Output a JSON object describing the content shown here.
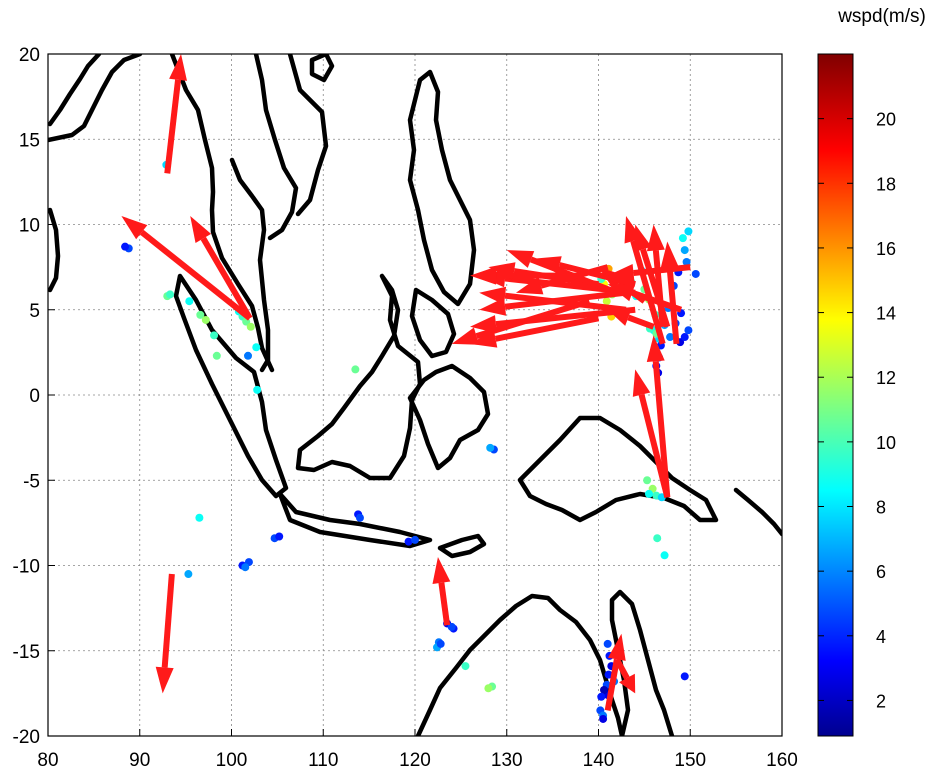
{
  "chart_data": {
    "type": "scatter",
    "title": "",
    "xlabel": "",
    "ylabel": "",
    "xlim": [
      80,
      160
    ],
    "ylim": [
      -20,
      20
    ],
    "xticks": [
      80,
      90,
      100,
      110,
      120,
      130,
      140,
      150,
      160
    ],
    "yticks": [
      20,
      15,
      10,
      5,
      0,
      -5,
      -10,
      -15,
      -20
    ],
    "grid": true,
    "colorbar": {
      "title": "wspd(m/s)",
      "range": [
        0.9,
        22
      ],
      "ticks": [
        2,
        4,
        6,
        8,
        10,
        12,
        14,
        16,
        18,
        20
      ],
      "colormap": "jet"
    },
    "arrow_color": "#ff1a1a",
    "arrows": [
      [
        93,
        13,
        94.5,
        20
      ],
      [
        102,
        4.5,
        88,
        10.5
      ],
      [
        102,
        4.5,
        95.5,
        10.5
      ],
      [
        93.5,
        -10.5,
        92.5,
        -17.5
      ],
      [
        123.5,
        -13.5,
        122.5,
        -9.5
      ],
      [
        141,
        -18.5,
        142.5,
        -14
      ],
      [
        142,
        -15.5,
        144,
        -17.5
      ],
      [
        147.5,
        -6,
        144,
        1.5
      ],
      [
        147.5,
        -6,
        146,
        3.5
      ],
      [
        147,
        3,
        143,
        10.5
      ],
      [
        147.5,
        4,
        144,
        10
      ],
      [
        148.5,
        3,
        147.5,
        9
      ],
      [
        147,
        4,
        146,
        10
      ],
      [
        145,
        5.5,
        140,
        7.5
      ],
      [
        144,
        5,
        126,
        4
      ],
      [
        144,
        6,
        127,
        7
      ],
      [
        140,
        6.5,
        128,
        7.5
      ],
      [
        142,
        6,
        130,
        8.5
      ],
      [
        141,
        7.5,
        131,
        6
      ],
      [
        143,
        5,
        127,
        6
      ],
      [
        139,
        5.5,
        124,
        3
      ],
      [
        140,
        4.5,
        126,
        3
      ],
      [
        143,
        6,
        127,
        5
      ],
      [
        138,
        7,
        126,
        7
      ],
      [
        144,
        6.5,
        133,
        8
      ],
      [
        146,
        4,
        141,
        5
      ],
      [
        149,
        5,
        141,
        6.5
      ],
      [
        150,
        7.5,
        141,
        7
      ]
    ],
    "points": [
      [
        92.9,
        13.5,
        8
      ],
      [
        88.8,
        8.6,
        5
      ],
      [
        88.4,
        8.7,
        4
      ],
      [
        93.0,
        5.8,
        11
      ],
      [
        93.3,
        5.9,
        10
      ],
      [
        95.4,
        5.5,
        9
      ],
      [
        96.6,
        4.7,
        11
      ],
      [
        97.2,
        4.4,
        12
      ],
      [
        98.1,
        3.5,
        10
      ],
      [
        100.8,
        4.9,
        9
      ],
      [
        101.2,
        4.6,
        10
      ],
      [
        101.6,
        4.3,
        11
      ],
      [
        102.1,
        4.0,
        12
      ],
      [
        102.7,
        2.8,
        9
      ],
      [
        101.8,
        2.3,
        6
      ],
      [
        102.8,
        0.3,
        9
      ],
      [
        98.4,
        2.3,
        11
      ],
      [
        96.5,
        -7.2,
        9
      ],
      [
        101.2,
        -10.0,
        4
      ],
      [
        101.9,
        -9.8,
        5
      ],
      [
        101.5,
        -10.1,
        6
      ],
      [
        104.7,
        -8.4,
        5
      ],
      [
        105.2,
        -8.3,
        4
      ],
      [
        95.3,
        -10.5,
        7
      ],
      [
        113.5,
        1.5,
        11
      ],
      [
        113.8,
        -7.0,
        4
      ],
      [
        114.0,
        -7.2,
        5
      ],
      [
        119.3,
        -8.6,
        4
      ],
      [
        120.0,
        -8.5,
        5
      ],
      [
        128.6,
        -3.2,
        5
      ],
      [
        128.2,
        -3.1,
        7
      ],
      [
        123.5,
        -13.4,
        3
      ],
      [
        124.2,
        -13.7,
        4
      ],
      [
        124.0,
        -13.6,
        5
      ],
      [
        122.6,
        -14.5,
        6
      ],
      [
        122.4,
        -14.8,
        7
      ],
      [
        122.8,
        -14.6,
        5
      ],
      [
        125.5,
        -15.9,
        10
      ],
      [
        128.4,
        -17.1,
        11
      ],
      [
        128.0,
        -17.2,
        12
      ],
      [
        140.6,
        6.5,
        14
      ],
      [
        141.2,
        6.1,
        15
      ],
      [
        140.9,
        5.5,
        13
      ],
      [
        141.5,
        5.9,
        12
      ],
      [
        141.1,
        7.4,
        16
      ],
      [
        140.3,
        6.8,
        10
      ],
      [
        141.8,
        5.0,
        13
      ],
      [
        141.4,
        4.6,
        15
      ],
      [
        142.0,
        4.8,
        14
      ],
      [
        142.5,
        6.4,
        11
      ],
      [
        143.0,
        7.2,
        12
      ],
      [
        143.6,
        6.6,
        10
      ],
      [
        144.1,
        5.8,
        9
      ],
      [
        144.7,
        7.3,
        8
      ],
      [
        145.0,
        6.2,
        11
      ],
      [
        145.5,
        5.6,
        12
      ],
      [
        146.2,
        4.7,
        10
      ],
      [
        146.0,
        3.8,
        9
      ],
      [
        146.6,
        3.3,
        8
      ],
      [
        147.2,
        4.1,
        7
      ],
      [
        147.6,
        5.1,
        6
      ],
      [
        148.2,
        6.4,
        5
      ],
      [
        148.7,
        7.2,
        4
      ],
      [
        149.6,
        7.8,
        6
      ],
      [
        149.4,
        8.5,
        7
      ],
      [
        149.8,
        9.6,
        8
      ],
      [
        149.2,
        9.2,
        9
      ],
      [
        150.6,
        7.1,
        5
      ],
      [
        149.0,
        4.8,
        4
      ],
      [
        148.4,
        4.2,
        5
      ],
      [
        147.8,
        3.4,
        6
      ],
      [
        148.9,
        3.1,
        3
      ],
      [
        149.4,
        3.4,
        4
      ],
      [
        149.8,
        3.8,
        5
      ],
      [
        145.6,
        3.9,
        10
      ],
      [
        146.3,
        3.6,
        11
      ],
      [
        146.8,
        2.9,
        4
      ],
      [
        146.6,
        2.2,
        5
      ],
      [
        146.3,
        1.7,
        4
      ],
      [
        146.5,
        1.3,
        3
      ],
      [
        146.2,
        2.6,
        6
      ],
      [
        145.3,
        -5.0,
        11
      ],
      [
        145.9,
        -5.5,
        12
      ],
      [
        146.3,
        -5.9,
        10
      ],
      [
        146.9,
        -6.0,
        8
      ],
      [
        145.5,
        -5.8,
        9
      ],
      [
        146.4,
        -8.4,
        10
      ],
      [
        147.2,
        -9.4,
        9
      ],
      [
        141.0,
        -14.6,
        5
      ],
      [
        141.2,
        -15.3,
        4
      ],
      [
        141.4,
        -15.9,
        3
      ],
      [
        141.1,
        -16.4,
        4
      ],
      [
        140.9,
        -17.0,
        5
      ],
      [
        141.0,
        -17.6,
        3
      ],
      [
        140.6,
        -17.3,
        2
      ],
      [
        140.3,
        -17.7,
        4
      ],
      [
        140.2,
        -18.5,
        5
      ],
      [
        140.5,
        -18.8,
        6
      ],
      [
        140.5,
        -19.0,
        3
      ],
      [
        141.7,
        -16.8,
        6
      ],
      [
        149.4,
        -16.5,
        4
      ]
    ]
  }
}
